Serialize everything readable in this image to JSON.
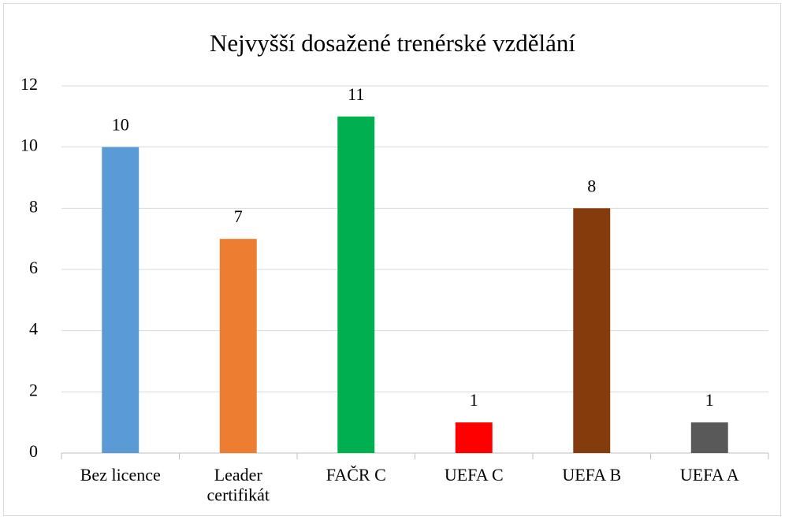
{
  "chart_data": {
    "type": "bar",
    "title": "Nejvyšší dosažené trenérské vzdělání",
    "categories": [
      "Bez licence",
      "Leader certifikát",
      "FAČR C",
      "UEFA C",
      "UEFA B",
      "UEFA A"
    ],
    "values": [
      10,
      7,
      11,
      1,
      8,
      1
    ],
    "colors": [
      "#5b9bd5",
      "#ed7d31",
      "#00b050",
      "#ff0000",
      "#843c0c",
      "#595959"
    ],
    "ylim": [
      0,
      12
    ],
    "yticks": [
      0,
      2,
      4,
      6,
      8,
      10,
      12
    ],
    "grid": true
  }
}
